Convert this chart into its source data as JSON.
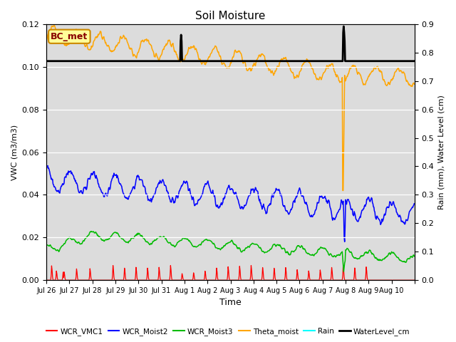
{
  "title": "Soil Moisture",
  "xlabel": "Time",
  "ylabel_left": "VWC (m3/m3)",
  "ylabel_right": "Rain (mm), Water Level (cm)",
  "ylim_left": [
    0,
    0.12
  ],
  "ylim_right": [
    0.0,
    0.9
  ],
  "yticks_left": [
    0.0,
    0.02,
    0.04,
    0.06,
    0.08,
    0.1,
    0.12
  ],
  "yticks_right": [
    0.0,
    0.1,
    0.2,
    0.3,
    0.4,
    0.5,
    0.6,
    0.7,
    0.8,
    0.9
  ],
  "bg_color": "#dcdcdc",
  "fig_color": "#ffffff",
  "legend_labels": [
    "WCR_VMC1",
    "WCR_Moist2",
    "WCR_Moist3",
    "Theta_moist",
    "Rain",
    "WaterLevel_cm"
  ],
  "legend_colors": [
    "#ff0000",
    "#0000ff",
    "#00bb00",
    "#ffa500",
    "#00ffff",
    "#000000"
  ],
  "box_label": "BC_met",
  "box_facecolor": "#ffff99",
  "box_edgecolor": "#cc8800",
  "box_text_color": "#880000",
  "tick_labels": [
    "Jul 26",
    "Jul 27",
    "Jul 28",
    "Jul 29",
    "Jul 30",
    "Jul 31",
    "Aug 1",
    "Aug 2",
    "Aug 3",
    "Aug 4",
    "Aug 5",
    "Aug 6",
    "Aug 7",
    "Aug 8",
    "Aug 9",
    "Aug 10"
  ],
  "water_level_value": 0.1027,
  "theta_dip_value": 0.042,
  "blue_dip_value": 0.018,
  "n_points": 768,
  "n_days": 16
}
